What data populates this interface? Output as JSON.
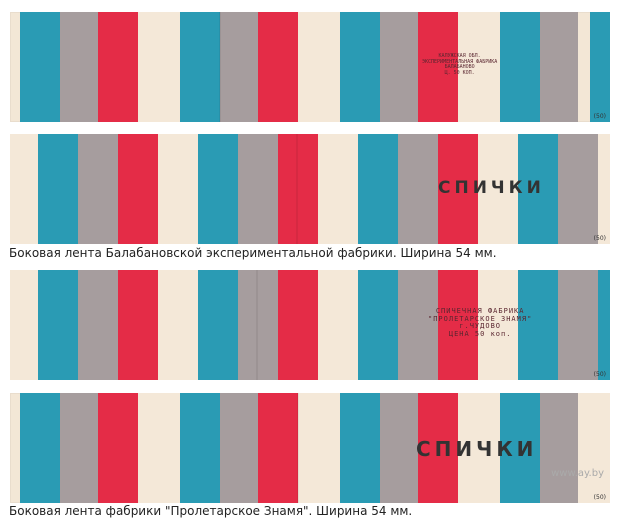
{
  "captions": {
    "first": "Боковая лента Балабановской экспериментальной фабрики. Ширина 54 мм.",
    "second": "Боковая лента фабрики \"Пролетарское Знамя\". Ширина 54 мм."
  },
  "strips": {
    "strip1": {
      "stamp_lines": [
        "КАЛУЖСКАЯ ОБЛ.",
        "ЭКСПЕРИМЕНТАЛЬНАЯ ФАБРИКА",
        "БАЛАБАНОВО",
        "Ц. 50 КОП."
      ],
      "corner_mark": "(50)"
    },
    "strip2": {
      "word": "СПИЧКИ",
      "corner_mark": "(50)"
    },
    "strip3": {
      "stamp_lines": [
        "СПИЧЕЧНАЯ ФАБРИКА",
        "\"ПРОЛЕТАРСКОЕ ЗНАМЯ\"",
        "г.ЧУДОВО",
        "ЦЕНА 50 коп."
      ],
      "corner_mark": "(50)"
    },
    "strip4": {
      "word": "СПИЧКИ",
      "corner_mark": "(50)"
    }
  },
  "colors": {
    "teal": "#2a9bb4",
    "gray": "#a69d9e",
    "red": "#e42c47",
    "cream": "#f4e8d8"
  },
  "watermark": "www.ay.by"
}
